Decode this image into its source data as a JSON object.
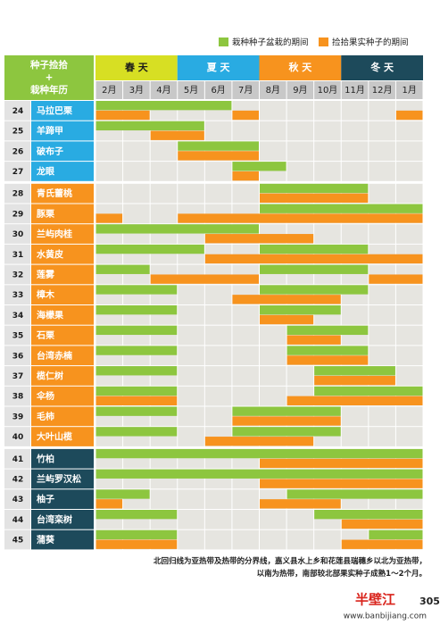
{
  "legend": {
    "green": {
      "label": "栽种种子盆栽的期间",
      "color": "#8dc63f"
    },
    "orange": {
      "label": "捡拾果实种子的期间",
      "color": "#f7931e"
    }
  },
  "table": {
    "corner": {
      "lines": [
        "种子捡拾",
        "+",
        "栽种年历"
      ],
      "color": "#8dc63f"
    },
    "seasons": [
      {
        "label": "春 天",
        "color": "#d7df23",
        "text_color": "#1a1a1a"
      },
      {
        "label": "夏 天",
        "color": "#29abe2",
        "text_color": "#ffffff"
      },
      {
        "label": "秋 天",
        "color": "#f7931e",
        "text_color": "#ffffff"
      },
      {
        "label": "冬 天",
        "color": "#1d4a5b",
        "text_color": "#ffffff"
      }
    ],
    "months": [
      "2月",
      "3月",
      "4月",
      "5月",
      "6月",
      "7月",
      "8月",
      "9月",
      "10月",
      "11月",
      "12月",
      "1月"
    ],
    "groups": [
      {
        "color": "#29abe2",
        "rows": [
          {
            "number": "24",
            "name": "马拉巴栗",
            "green": [
              [
                0,
                5
              ]
            ],
            "orange": [
              [
                0,
                2
              ],
              [
                5,
                6
              ],
              [
                11,
                12
              ]
            ]
          },
          {
            "number": "25",
            "name": "羊蹄甲",
            "green": [
              [
                0,
                4
              ]
            ],
            "orange": [
              [
                2,
                4
              ]
            ]
          },
          {
            "number": "26",
            "name": "破布子",
            "green": [
              [
                3,
                6
              ]
            ],
            "orange": [
              [
                3,
                6
              ]
            ]
          },
          {
            "number": "27",
            "name": "龙眼",
            "green": [
              [
                5,
                7
              ]
            ],
            "orange": [
              [
                5,
                6
              ]
            ]
          }
        ]
      },
      {
        "color": "#f7931e",
        "rows": [
          {
            "number": "28",
            "name": "青氏蕾桃",
            "green": [
              [
                6,
                10
              ]
            ],
            "orange": [
              [
                6,
                10
              ]
            ]
          },
          {
            "number": "29",
            "name": "豚栗",
            "green": [
              [
                6,
                12
              ]
            ],
            "orange": [
              [
                0,
                1
              ],
              [
                3,
                12
              ]
            ]
          },
          {
            "number": "30",
            "name": "兰屿肉桂",
            "green": [
              [
                0,
                6
              ]
            ],
            "orange": [
              [
                4,
                8
              ]
            ]
          },
          {
            "number": "31",
            "name": "水黄皮",
            "green": [
              [
                0,
                4
              ],
              [
                6,
                10
              ]
            ],
            "orange": [
              [
                4,
                12
              ]
            ]
          },
          {
            "number": "32",
            "name": "莲雾",
            "green": [
              [
                0,
                2
              ],
              [
                6,
                10
              ]
            ],
            "orange": [
              [
                2,
                6
              ],
              [
                10,
                12
              ]
            ]
          },
          {
            "number": "33",
            "name": "樟木",
            "green": [
              [
                0,
                3
              ],
              [
                6,
                10
              ]
            ],
            "orange": [
              [
                5,
                9
              ]
            ]
          },
          {
            "number": "34",
            "name": "海檬果",
            "green": [
              [
                0,
                3
              ],
              [
                6,
                9
              ]
            ],
            "orange": [
              [
                6,
                8
              ]
            ]
          },
          {
            "number": "35",
            "name": "石栗",
            "green": [
              [
                0,
                3
              ],
              [
                7,
                10
              ]
            ],
            "orange": [
              [
                7,
                9
              ]
            ]
          },
          {
            "number": "36",
            "name": "台湾赤楠",
            "green": [
              [
                0,
                3
              ],
              [
                7,
                10
              ]
            ],
            "orange": [
              [
                7,
                10
              ]
            ]
          },
          {
            "number": "37",
            "name": "榄仁树",
            "green": [
              [
                0,
                3
              ],
              [
                8,
                11
              ]
            ],
            "orange": [
              [
                8,
                11
              ]
            ]
          },
          {
            "number": "38",
            "name": "伞杨",
            "green": [
              [
                0,
                3
              ],
              [
                8,
                12
              ]
            ],
            "orange": [
              [
                0,
                3
              ],
              [
                7,
                12
              ]
            ]
          },
          {
            "number": "39",
            "name": "毛柿",
            "green": [
              [
                0,
                3
              ],
              [
                5,
                9
              ]
            ],
            "orange": [
              [
                5,
                9
              ]
            ]
          },
          {
            "number": "40",
            "name": "大叶山榄",
            "green": [
              [
                0,
                3
              ],
              [
                5,
                9
              ]
            ],
            "orange": [
              [
                4,
                8
              ]
            ]
          }
        ]
      },
      {
        "color": "#1d4a5b",
        "rows": [
          {
            "number": "41",
            "name": "竹柏",
            "green": [
              [
                0,
                12
              ]
            ],
            "orange": [
              [
                6,
                12
              ]
            ]
          },
          {
            "number": "42",
            "name": "兰屿罗汉松",
            "green": [
              [
                0,
                12
              ]
            ],
            "orange": [
              [
                6,
                12
              ]
            ]
          },
          {
            "number": "43",
            "name": "柚子",
            "green": [
              [
                0,
                2
              ],
              [
                7,
                12
              ]
            ],
            "orange": [
              [
                0,
                1
              ],
              [
                6,
                9
              ]
            ]
          },
          {
            "number": "44",
            "name": "台湾栾树",
            "green": [
              [
                0,
                3
              ],
              [
                8,
                12
              ]
            ],
            "orange": [
              [
                9,
                12
              ]
            ]
          },
          {
            "number": "45",
            "name": "蒲葵",
            "green": [
              [
                0,
                3
              ],
              [
                10,
                12
              ]
            ],
            "orange": [
              [
                0,
                3
              ],
              [
                9,
                12
              ]
            ]
          }
        ]
      }
    ]
  },
  "footer": {
    "lines": [
      "北回归线为亚热带及热带的分界线，嘉义县水上乡和花莲县瑞穗乡以北为亚热带，",
      "以南为热带，南部较北部果实种子成熟1～2个月。"
    ],
    "page_number": "305"
  },
  "watermark": {
    "name": "半壁江",
    "url": "www.banbijiang.com"
  }
}
